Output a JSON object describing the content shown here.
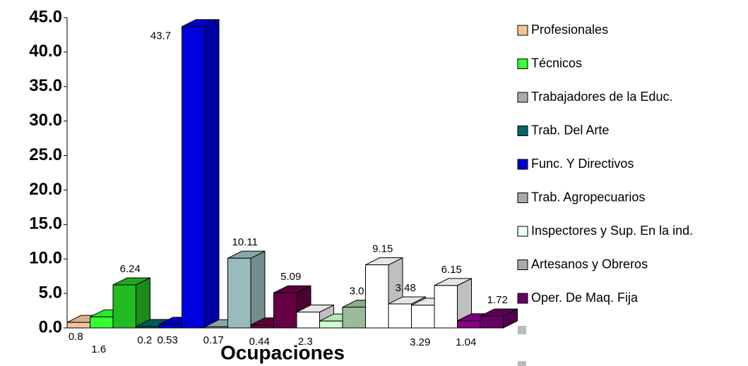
{
  "chart_data": {
    "type": "bar3d",
    "x_label": "Ocupaciones",
    "values": [
      0.8,
      1.6,
      6.24,
      0.2,
      0.53,
      43.7,
      0.17,
      10.11,
      0.44,
      5.09,
      2.3,
      1.0,
      3.01,
      9.15,
      3.48,
      3.29,
      6.15,
      1.04,
      1.72
    ],
    "value_labels": [
      "0.8",
      "1.6",
      "6.24",
      "0.2",
      "0.53",
      "43.7",
      "0.17",
      "10.11",
      "0.44",
      "5.09",
      "2.3",
      null,
      "3.01",
      "9.15",
      "3.48",
      "3.29",
      "6.15",
      "1.04",
      "1.72"
    ],
    "colors": [
      "#f4c49a",
      "#33ff33",
      "#22bb22",
      "#006666",
      "#0000cc",
      "#0000dd",
      "#99bbbb",
      "#99bbbb",
      "#660044",
      "#660044",
      "#ffffff",
      "#ccffcc",
      "#99bb99",
      "#ffffff",
      "#ffffff",
      "#ffffff",
      "#ffffff",
      "#880088",
      "#660066"
    ],
    "ylim": [
      0,
      45
    ],
    "yticks": [
      {
        "value": 0,
        "label": "0.0"
      },
      {
        "value": 5,
        "label": "5.0"
      },
      {
        "value": 10,
        "label": "10.0"
      },
      {
        "value": 15,
        "label": "15.0"
      },
      {
        "value": 20,
        "label": "20.0"
      },
      {
        "value": 25,
        "label": "25.0"
      },
      {
        "value": 30,
        "label": "30.0"
      },
      {
        "value": 35,
        "label": "35.0"
      },
      {
        "value": 40,
        "label": "40.0"
      },
      {
        "value": 45,
        "label": "45.0"
      }
    ],
    "legend": [
      {
        "name": "Profesionales",
        "color": "#f4c49a"
      },
      {
        "name": "Técnicos",
        "color": "#33ff33"
      },
      {
        "name": "Trabajadores de la Educ.",
        "color": "#aaaaaa"
      },
      {
        "name": "Trab. Del Arte",
        "color": "#006666"
      },
      {
        "name": "Func. Y Directivos",
        "color": "#0000cc"
      },
      {
        "name": "Trab. Agropecuarios",
        "color": "#aaaaaa"
      },
      {
        "name": "Inspectores y Sup. En la ind.",
        "color": "#eeffff"
      },
      {
        "name": "Artesanos y Obreros",
        "color": "#aaaaaa"
      },
      {
        "name": "Oper. De Maq. Fija",
        "color": "#660066"
      }
    ]
  }
}
